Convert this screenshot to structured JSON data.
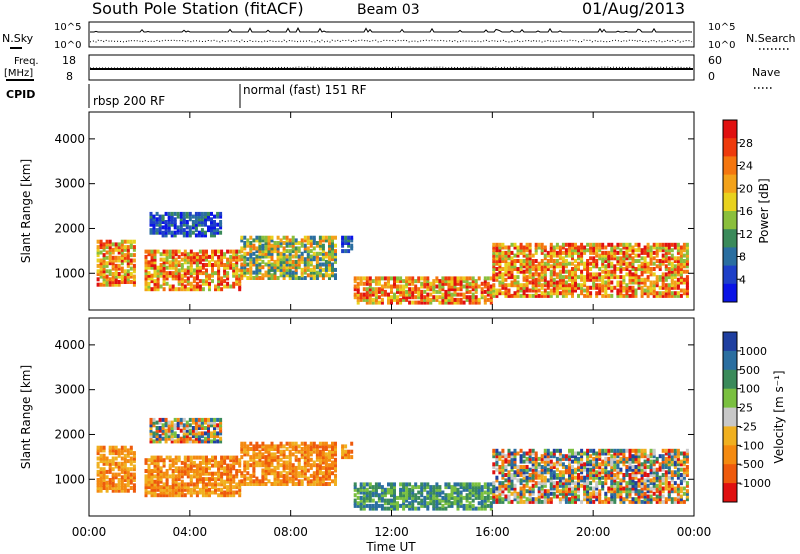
{
  "header": {
    "station": "South Pole Station (fitACF)",
    "beam": "Beam 03",
    "date": "01/Aug/2013"
  },
  "status_panels": {
    "nsky_label": "N.Sky",
    "nsearch_label": "N.Search",
    "noise_ticks": [
      "10^5",
      "10^0"
    ],
    "freq_label_1": "Freq.",
    "freq_label_2": "[MHz]",
    "freq_ticks": [
      "18",
      "8"
    ],
    "nave_label": "Nave",
    "nave_ticks": [
      "60",
      "0"
    ],
    "cpid_label": "CPID",
    "cpid_segments": [
      {
        "label": "rbsp 200 RF",
        "start_hour": 0,
        "end_hour": 6
      },
      {
        "label": "normal (fast) 151 RF",
        "start_hour": 6,
        "end_hour": 24
      }
    ]
  },
  "chart_data": [
    {
      "type": "heatmap",
      "name": "power-panel",
      "ylabel": "Slant Range [km]",
      "xlabel": "Time UT",
      "x_ticks": [
        "00:00",
        "04:00",
        "08:00",
        "12:00",
        "16:00",
        "20:00",
        "00:00"
      ],
      "y_ticks": [
        "1000",
        "2000",
        "3000",
        "4000"
      ],
      "xlim_hours": [
        0,
        24
      ],
      "ylim_km": [
        180,
        4600
      ],
      "colorbar_label": "Power [dB]",
      "colorbar_ticks": [
        "4",
        "8",
        "12",
        "16",
        "20",
        "24",
        "28"
      ],
      "colorbar_colors": [
        "#0a14e6",
        "#1e40c8",
        "#2a6ea0",
        "#3a8a5a",
        "#8abf3c",
        "#e8d21e",
        "#f3a21a",
        "#f4760f",
        "#ee3a0c",
        "#e01010"
      ],
      "echo_regions": [
        {
          "t": [
            0.3,
            1.8
          ],
          "r": [
            700,
            1700
          ],
          "level": "high"
        },
        {
          "t": [
            2.2,
            6.0
          ],
          "r": [
            600,
            1500
          ],
          "level": "high"
        },
        {
          "t": [
            2.4,
            5.2
          ],
          "r": [
            1800,
            2300
          ],
          "level": "low"
        },
        {
          "t": [
            6.0,
            9.8
          ],
          "r": [
            850,
            1800
          ],
          "level": "mid"
        },
        {
          "t": [
            10.0,
            10.4
          ],
          "r": [
            1450,
            1800
          ],
          "level": "low"
        },
        {
          "t": [
            10.5,
            16.0
          ],
          "r": [
            300,
            900
          ],
          "level": "high"
        },
        {
          "t": [
            16.0,
            23.7
          ],
          "r": [
            450,
            1650
          ],
          "level": "high"
        }
      ]
    },
    {
      "type": "heatmap",
      "name": "velocity-panel",
      "ylabel": "Slant Range [km]",
      "xlabel": "Time UT",
      "x_ticks": [
        "00:00",
        "04:00",
        "08:00",
        "12:00",
        "16:00",
        "20:00",
        "00:00"
      ],
      "y_ticks": [
        "1000",
        "2000",
        "3000",
        "4000"
      ],
      "xlim_hours": [
        0,
        24
      ],
      "ylim_km": [
        180,
        4600
      ],
      "colorbar_label": "Velocity [m s⁻¹]",
      "colorbar_ticks": [
        "1000",
        "500",
        "100",
        "25",
        "-25",
        "-100",
        "-500",
        "-1000"
      ],
      "colorbar_colors": [
        "#1f3fa0",
        "#2a6ea0",
        "#3a8a5a",
        "#7ac040",
        "#c8c8c8",
        "#f0b020",
        "#f48a10",
        "#ee5a0c",
        "#e01010"
      ],
      "echo_regions": [
        {
          "t": [
            0.3,
            1.8
          ],
          "r": [
            700,
            1700
          ],
          "level": "neg"
        },
        {
          "t": [
            2.2,
            6.0
          ],
          "r": [
            600,
            1500
          ],
          "level": "neg"
        },
        {
          "t": [
            2.4,
            5.2
          ],
          "r": [
            1800,
            2300
          ],
          "level": "mixed"
        },
        {
          "t": [
            6.0,
            9.8
          ],
          "r": [
            850,
            1800
          ],
          "level": "neg"
        },
        {
          "t": [
            10.0,
            10.4
          ],
          "r": [
            1450,
            1800
          ],
          "level": "neg"
        },
        {
          "t": [
            10.5,
            16.0
          ],
          "r": [
            300,
            900
          ],
          "level": "pos"
        },
        {
          "t": [
            16.0,
            23.7
          ],
          "r": [
            450,
            1650
          ],
          "level": "mixed"
        }
      ]
    }
  ]
}
